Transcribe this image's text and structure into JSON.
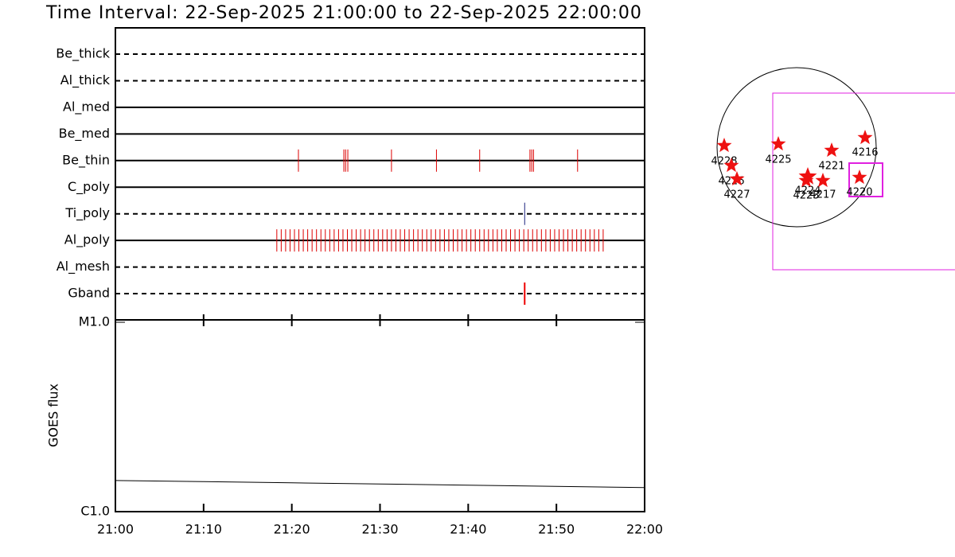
{
  "title": "Time Interval: 22-Sep-2025 21:00:00 to 22-Sep-2025 22:00:00",
  "chart_data": [
    {
      "type": "event",
      "categories": [
        "Be_thick",
        "Al_thick",
        "Al_med",
        "Be_med",
        "Be_thin",
        "C_poly",
        "Ti_poly",
        "Al_poly",
        "Al_mesh",
        "Gband"
      ],
      "line_styles": [
        "dashed",
        "dashed",
        "solid",
        "solid",
        "solid",
        "solid",
        "dashed",
        "solid",
        "dashed",
        "dashed"
      ],
      "event_colors": [
        "#dd0000",
        "#dd0000",
        "#dd0000",
        "#dd0000",
        "#dd0000",
        "#dd0000",
        "#1a237e",
        "#dd0000",
        "#dd0000",
        "#ee0000"
      ],
      "events": [
        [],
        [],
        [],
        [],
        [
          20.75,
          25.9,
          26.1,
          26.35,
          31.3,
          36.4,
          41.3,
          47.0,
          47.2,
          47.4,
          52.4
        ],
        [],
        [
          46.4
        ],
        [
          18.3,
          18.8,
          19.3,
          19.8,
          20.3,
          20.8,
          21.3,
          21.8,
          22.3,
          22.8,
          23.3,
          23.8,
          24.3,
          24.8,
          25.3,
          25.8,
          26.3,
          26.8,
          27.3,
          27.8,
          28.3,
          28.8,
          29.3,
          29.8,
          30.3,
          30.8,
          31.3,
          31.8,
          32.3,
          32.8,
          33.3,
          33.8,
          34.3,
          34.8,
          35.3,
          35.8,
          36.3,
          36.8,
          37.3,
          37.8,
          38.3,
          38.8,
          39.3,
          39.8,
          40.3,
          40.8,
          41.3,
          41.8,
          42.3,
          42.8,
          43.3,
          43.8,
          44.3,
          44.8,
          45.3,
          45.8,
          46.3,
          46.8,
          47.3,
          47.8,
          48.3,
          48.8,
          49.3,
          49.8,
          50.3,
          50.8,
          51.3,
          51.8,
          52.3,
          52.8,
          53.3,
          53.8,
          54.3,
          54.8,
          55.3
        ],
        [],
        [
          46.4
        ]
      ],
      "xlim": [
        0,
        60
      ]
    },
    {
      "type": "line",
      "ylabel": "GOES flux",
      "log_scale": true,
      "x": [
        0,
        10,
        20,
        30,
        40,
        50,
        60
      ],
      "values": [
        1.46e-06,
        1.44e-06,
        1.42e-06,
        1.4e-06,
        1.38e-06,
        1.36e-06,
        1.34e-06
      ],
      "color": "#000000",
      "xlim": [
        0,
        60
      ],
      "xticks": [
        {
          "value": 0,
          "label": "21:00"
        },
        {
          "value": 10,
          "label": "21:10"
        },
        {
          "value": 20,
          "label": "21:20"
        },
        {
          "value": 30,
          "label": "21:30"
        },
        {
          "value": 40,
          "label": "21:40"
        },
        {
          "value": 50,
          "label": "21:50"
        },
        {
          "value": 60,
          "label": "22:00"
        }
      ],
      "ylim": [
        1e-06,
        1e-05
      ],
      "yticks": [
        {
          "value": 1e-06,
          "label": "C1.0"
        },
        {
          "value": 1e-05,
          "label": "M1.0"
        }
      ]
    }
  ],
  "map": {
    "regions": [
      "4228",
      "4226",
      "4227",
      "4225",
      "4221",
      "4216",
      "4224",
      "4223",
      "4217",
      "4220"
    ]
  }
}
